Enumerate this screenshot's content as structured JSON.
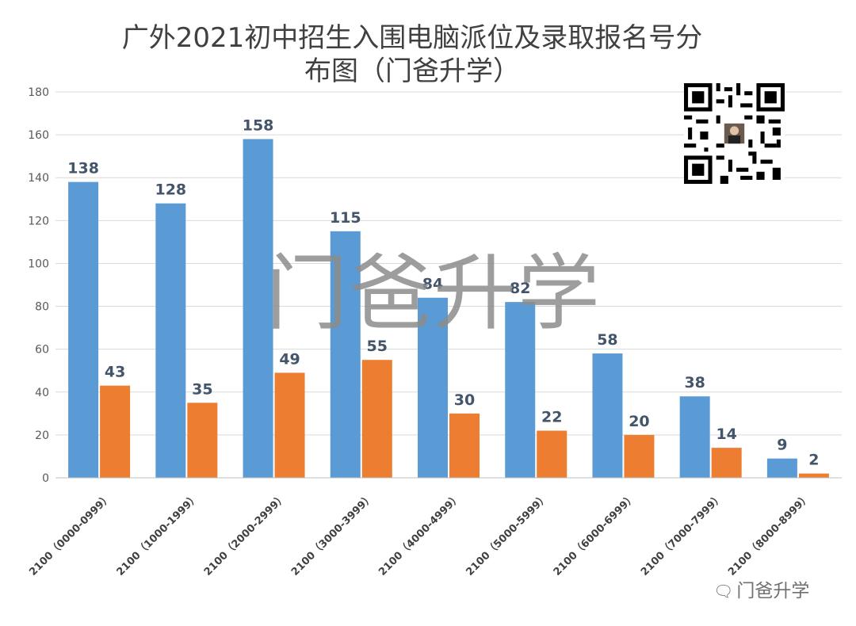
{
  "title_line1": "广外2021初中招生入围电脑派位及录取报名号分",
  "title_line2": "布图（门爸升学）",
  "watermark": "门爸升学",
  "footer_brand": "门爸升学",
  "footer_icon": "wechat-icon",
  "qr_code_icon": "qr-code-icon",
  "colors": {
    "series_1": "#5b9bd5",
    "series_2": "#ed7d31",
    "grid": "#d9d9d9"
  },
  "chart_data": {
    "type": "bar",
    "categories": [
      "2100（0000-0999）",
      "2100（1000-1999）",
      "2100（2000-2999）",
      "2100（3000-3999）",
      "2100（4000-4999）",
      "2100（5000-5999）",
      "2100（6000-6999）",
      "2100（7000-7999）",
      "2100（8000-8999）"
    ],
    "series": [
      {
        "values": [
          138,
          128,
          158,
          115,
          84,
          82,
          58,
          38,
          9
        ]
      },
      {
        "values": [
          43,
          35,
          49,
          55,
          30,
          22,
          20,
          14,
          2
        ]
      }
    ],
    "ylim": [
      0,
      180
    ],
    "yticks": [
      0,
      20,
      40,
      60,
      80,
      100,
      120,
      140,
      160,
      180
    ],
    "grid": true,
    "legend": "none"
  }
}
